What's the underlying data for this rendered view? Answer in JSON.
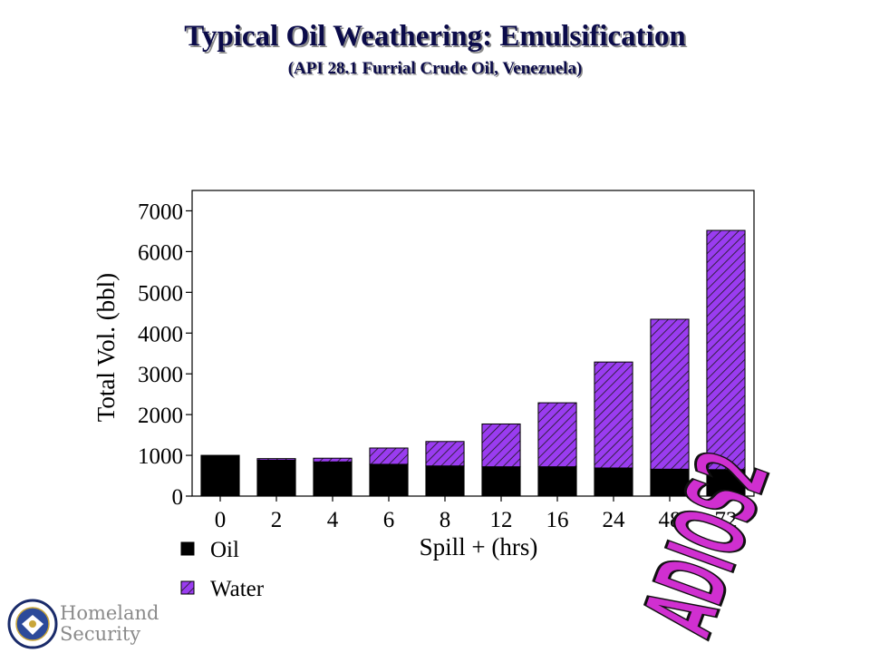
{
  "title": "Typical Oil Weathering:  Emulsification",
  "subtitle": "(API 28.1 Furrial Crude Oil, Venezuela)",
  "chart_data": {
    "type": "bar",
    "stacked": true,
    "categories": [
      "0",
      "2",
      "4",
      "6",
      "8",
      "12",
      "16",
      "24",
      "48",
      "72"
    ],
    "series": [
      {
        "name": "Oil",
        "color": "#000000",
        "values": [
          1000,
          880,
          840,
          780,
          740,
          720,
          720,
          690,
          660,
          650
        ]
      },
      {
        "name": "Water",
        "color": "#9a3cf0",
        "values": [
          0,
          40,
          90,
          400,
          600,
          1050,
          1570,
          2600,
          3680,
          5870
        ]
      }
    ],
    "xlabel": "Spill + (hrs)",
    "ylabel": "Total Vol. (bbl)",
    "ylim": [
      0,
      7500
    ],
    "yticks": [
      0,
      1000,
      2000,
      3000,
      4000,
      5000,
      6000,
      7000
    ],
    "grid": false,
    "legend": "bottom-left, below plot"
  },
  "watermark": {
    "text": "ADIOS2",
    "color": "#d02fd0"
  },
  "logo": {
    "line1": "Homeland",
    "line2": "Security",
    "icon": "dhs-seal-icon"
  }
}
